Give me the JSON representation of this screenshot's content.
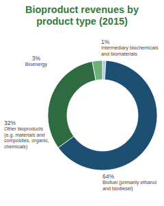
{
  "chart_data": {
    "type": "pie",
    "title": "Bioproduct revenues by product type (2015)",
    "categories": [
      "Intermediary biochemicals and biomaterials",
      "Biofuel (primarily ethanol and biodiesel)",
      "Other bioproducts (e.g. materials and composites, organic, chemicals)",
      "Bioenergy"
    ],
    "values": [
      1,
      64,
      32,
      3
    ],
    "value_labels": [
      "1%",
      "64%",
      "32%",
      "3%"
    ],
    "colors": [
      "#a9cbe3",
      "#1d4f73",
      "#2e6b41",
      "#6fb07a"
    ],
    "data_labels": true
  }
}
